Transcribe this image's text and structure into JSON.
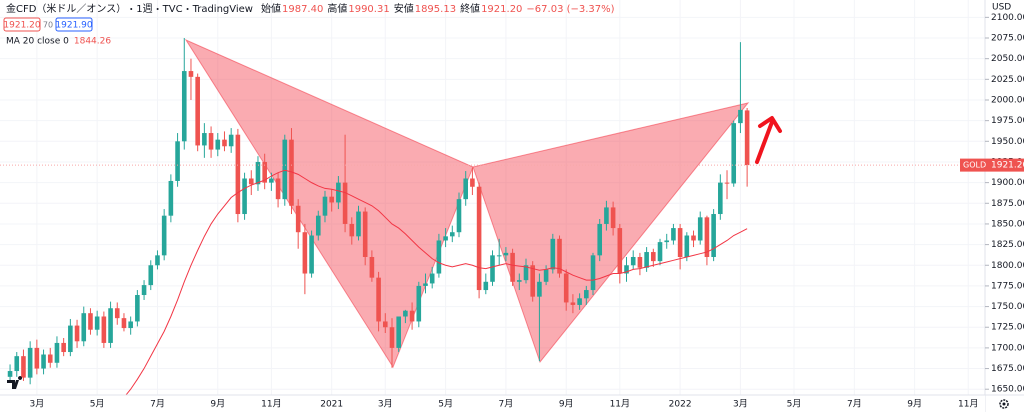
{
  "chart_data": {
    "type": "candlestick",
    "title": "金CFD（米ドル／オンス）",
    "interval": "1週",
    "exchange": "TVC",
    "platform": "TradingView",
    "ohlc_legend": [
      {
        "label": "始値",
        "value": "1987.40"
      },
      {
        "label": "高値",
        "value": "1990.31"
      },
      {
        "label": "安値",
        "value": "1895.13"
      },
      {
        "label": "終値",
        "value": "1921.20"
      }
    ],
    "change": "−67.03 (−3.37%)",
    "bid": "1921.20",
    "spread": "70",
    "ask": "1921.90",
    "symbol_label": "GOLD",
    "last_price": "1921.20",
    "currency": "USD",
    "candles": {
      "up_color": "#26a69a",
      "down_color": "#ef5350",
      "open": [
        1665,
        1672,
        1690,
        1664,
        1700,
        1675,
        1692,
        1682,
        1706,
        1695,
        1727,
        1708,
        1742,
        1722,
        1738,
        1706,
        1748,
        1736,
        1724,
        1732,
        1764,
        1776,
        1800,
        1812,
        1860,
        1902,
        1950,
        2035,
        2028,
        1945,
        1960,
        1940,
        1952,
        1944,
        1958,
        1862,
        1905,
        1898,
        1925,
        1900,
        1905,
        1880,
        1952,
        1872,
        1840,
        1790,
        1836,
        1860,
        1883,
        1876,
        1900,
        1850,
        1835,
        1865,
        1810,
        1785,
        1732,
        1725,
        1700,
        1738,
        1745,
        1732,
        1775,
        1778,
        1790,
        1830,
        1835,
        1840,
        1880,
        1905,
        1895,
        1770,
        1780,
        1812,
        1812,
        1815,
        1780,
        1782,
        1800,
        1762,
        1780,
        1795,
        1832,
        1790,
        1755,
        1752,
        1760,
        1770,
        1812,
        1850,
        1870,
        1845,
        1790,
        1800,
        1810,
        1797,
        1816,
        1805,
        1828,
        1830,
        1845,
        1810,
        1836,
        1830,
        1858,
        1810,
        1862,
        1900,
        1899,
        1972,
        1987.4
      ],
      "high": [
        1680,
        1695,
        1698,
        1708,
        1710,
        1698,
        1700,
        1714,
        1712,
        1735,
        1734,
        1750,
        1748,
        1745,
        1744,
        1756,
        1755,
        1742,
        1738,
        1770,
        1782,
        1806,
        1818,
        1868,
        1910,
        1960,
        2075,
        2050,
        2032,
        1972,
        1968,
        1960,
        1962,
        1966,
        1965,
        1912,
        1915,
        1932,
        1935,
        1912,
        1912,
        1958,
        1966,
        1880,
        1850,
        1842,
        1866,
        1890,
        1892,
        1908,
        1958,
        1858,
        1872,
        1870,
        1818,
        1792,
        1742,
        1736,
        1730,
        1746,
        1755,
        1780,
        1790,
        1798,
        1838,
        1845,
        1848,
        1888,
        1914,
        1918,
        1900,
        1790,
        1818,
        1832,
        1822,
        1820,
        1790,
        1808,
        1805,
        1790,
        1800,
        1838,
        1836,
        1795,
        1765,
        1766,
        1775,
        1815,
        1856,
        1878,
        1877,
        1850,
        1810,
        1818,
        1815,
        1822,
        1820,
        1832,
        1838,
        1850,
        1850,
        1840,
        1842,
        1865,
        1860,
        1868,
        1910,
        1915,
        1975,
        2070,
        1990.31
      ],
      "low": [
        1658,
        1665,
        1660,
        1656,
        1668,
        1668,
        1676,
        1676,
        1690,
        1690,
        1700,
        1702,
        1716,
        1715,
        1700,
        1700,
        1728,
        1720,
        1716,
        1726,
        1758,
        1770,
        1795,
        1806,
        1852,
        1895,
        1940,
        2000,
        1938,
        1930,
        1930,
        1932,
        1938,
        1936,
        1852,
        1855,
        1885,
        1890,
        1892,
        1890,
        1870,
        1872,
        1862,
        1820,
        1765,
        1785,
        1830,
        1852,
        1865,
        1868,
        1840,
        1825,
        1830,
        1800,
        1780,
        1720,
        1718,
        1676,
        1695,
        1730,
        1722,
        1725,
        1766,
        1772,
        1785,
        1822,
        1828,
        1834,
        1872,
        1885,
        1760,
        1765,
        1775,
        1800,
        1805,
        1775,
        1770,
        1778,
        1756,
        1684,
        1776,
        1790,
        1785,
        1745,
        1742,
        1746,
        1752,
        1764,
        1805,
        1842,
        1836,
        1778,
        1780,
        1795,
        1788,
        1792,
        1798,
        1800,
        1820,
        1825,
        1795,
        1805,
        1822,
        1825,
        1800,
        1805,
        1855,
        1880,
        1895,
        1960,
        1895.13
      ],
      "close": [
        1672,
        1690,
        1664,
        1700,
        1675,
        1692,
        1682,
        1706,
        1695,
        1727,
        1708,
        1742,
        1722,
        1738,
        1706,
        1748,
        1736,
        1724,
        1732,
        1764,
        1776,
        1800,
        1812,
        1860,
        1902,
        1950,
        2035,
        2028,
        1945,
        1960,
        1940,
        1952,
        1944,
        1958,
        1862,
        1905,
        1898,
        1925,
        1900,
        1905,
        1880,
        1952,
        1872,
        1840,
        1790,
        1836,
        1860,
        1883,
        1876,
        1900,
        1850,
        1835,
        1865,
        1810,
        1785,
        1732,
        1725,
        1700,
        1738,
        1745,
        1732,
        1775,
        1778,
        1790,
        1830,
        1835,
        1840,
        1880,
        1905,
        1895,
        1770,
        1780,
        1812,
        1812,
        1815,
        1780,
        1782,
        1800,
        1762,
        1780,
        1795,
        1832,
        1790,
        1755,
        1752,
        1760,
        1770,
        1812,
        1850,
        1870,
        1845,
        1790,
        1800,
        1810,
        1797,
        1816,
        1805,
        1828,
        1830,
        1845,
        1810,
        1836,
        1830,
        1858,
        1810,
        1862,
        1900,
        1899,
        1972,
        1988,
        1921.2
      ]
    },
    "ma": {
      "name": "MA 20 close 0",
      "value_label": "1844.26",
      "color": "#f23645",
      "values": [
        null,
        null,
        null,
        null,
        null,
        null,
        null,
        null,
        null,
        null,
        null,
        null,
        null,
        null,
        null,
        null,
        null,
        1640,
        1650,
        1662,
        1675,
        1690,
        1705,
        1720,
        1738,
        1758,
        1780,
        1800,
        1818,
        1835,
        1850,
        1862,
        1872,
        1882,
        1888,
        1893,
        1897,
        1900,
        1903,
        1908,
        1912,
        1915,
        1913,
        1910,
        1905,
        1900,
        1896,
        1893,
        1892,
        1890,
        1888,
        1884,
        1880,
        1876,
        1872,
        1866,
        1858,
        1850,
        1845,
        1838,
        1830,
        1822,
        1815,
        1808,
        1803,
        1800,
        1798,
        1800,
        1802,
        1800,
        1797,
        1796,
        1798,
        1800,
        1802,
        1800,
        1799,
        1798,
        1796,
        1794,
        1795,
        1797,
        1796,
        1792,
        1788,
        1785,
        1782,
        1782,
        1784,
        1787,
        1790,
        1790,
        1792,
        1795,
        1796,
        1798,
        1800,
        1802,
        1804,
        1806,
        1808,
        1810,
        1812,
        1814,
        1816,
        1820,
        1825,
        1830,
        1836,
        1840,
        1844.26
      ]
    },
    "xlim": [
      -1.5,
      145.5
    ],
    "xticks": [
      {
        "value": 4,
        "label": "3月"
      },
      {
        "value": 13,
        "label": "5月"
      },
      {
        "value": 22,
        "label": "7月"
      },
      {
        "value": 31,
        "label": "9月"
      },
      {
        "value": 39,
        "label": "11月"
      },
      {
        "value": 48,
        "label": "2021"
      },
      {
        "value": 56,
        "label": "3月"
      },
      {
        "value": 65,
        "label": "5月"
      },
      {
        "value": 74,
        "label": "7月"
      },
      {
        "value": 83,
        "label": "9月"
      },
      {
        "value": 91,
        "label": "11月"
      },
      {
        "value": 100,
        "label": "2022"
      },
      {
        "value": 109,
        "label": "3月"
      },
      {
        "value": 117,
        "label": "5月"
      },
      {
        "value": 126,
        "label": "7月"
      },
      {
        "value": 135,
        "label": "9月"
      },
      {
        "value": 143,
        "label": "11月"
      }
    ],
    "ylim": [
      1643,
      2121
    ],
    "yticks": [
      {
        "value": 1650,
        "label": "1650.00"
      },
      {
        "value": 1675,
        "label": "1675.00"
      },
      {
        "value": 1700,
        "label": "1700.00"
      },
      {
        "value": 1725,
        "label": "1725.00"
      },
      {
        "value": 1750,
        "label": "1750.00"
      },
      {
        "value": 1775,
        "label": "1775.00"
      },
      {
        "value": 1800,
        "label": "1800.00"
      },
      {
        "value": 1825,
        "label": "1825.00"
      },
      {
        "value": 1850,
        "label": "1850.00"
      },
      {
        "value": 1875,
        "label": "1875.00"
      },
      {
        "value": 1900,
        "label": "1900.00"
      },
      {
        "value": 1925,
        "label": "1925.00"
      },
      {
        "value": 1950,
        "label": "1950.00"
      },
      {
        "value": 1975,
        "label": "1975.00"
      },
      {
        "value": 2000,
        "label": "2000.00"
      },
      {
        "value": 2025,
        "label": "2025.00"
      },
      {
        "value": 2050,
        "label": "2050.00"
      },
      {
        "value": 2075,
        "label": "2075.00"
      },
      {
        "value": 2100,
        "label": "2100.00"
      }
    ],
    "grid": true
  }
}
